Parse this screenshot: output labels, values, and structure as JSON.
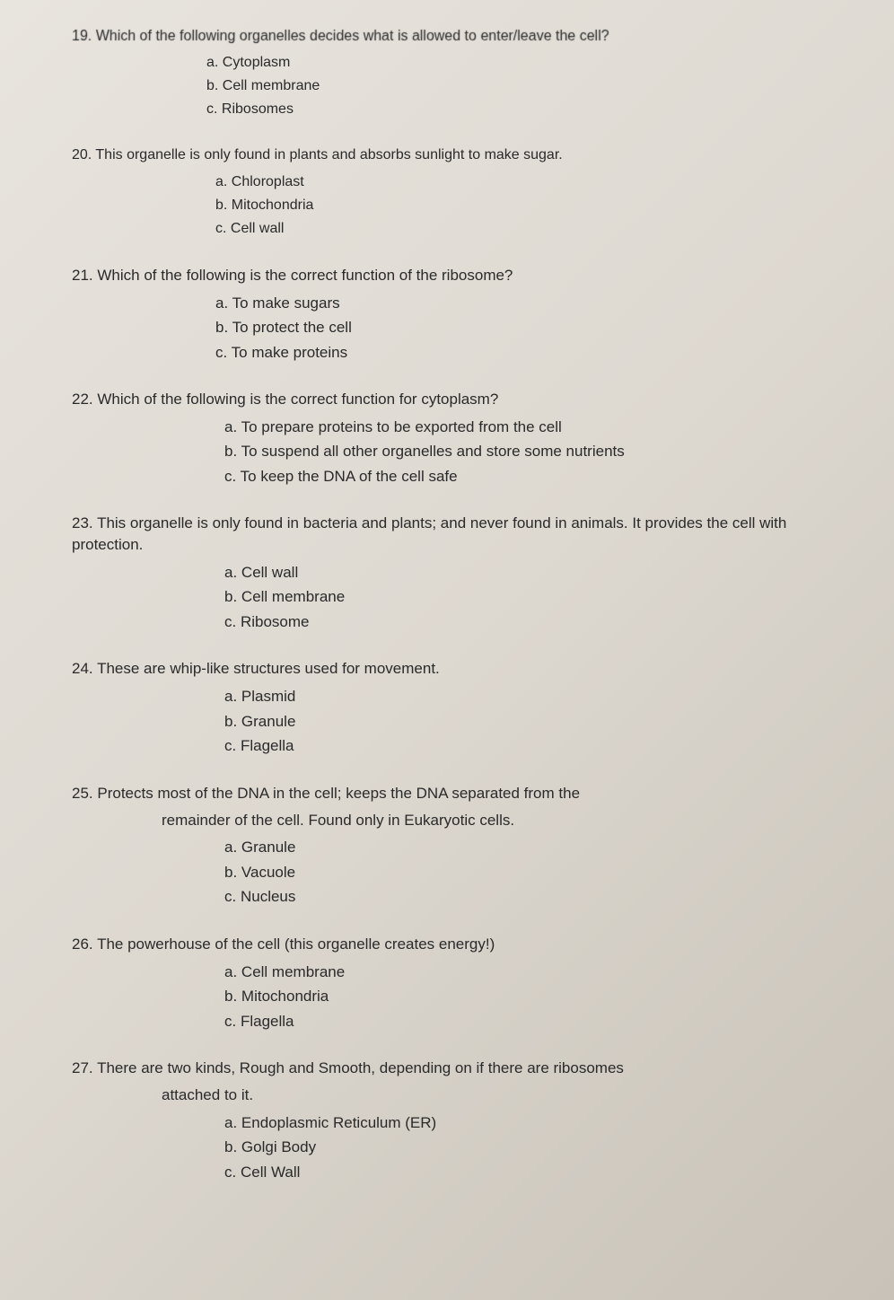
{
  "questions": [
    {
      "number": "19.",
      "text": "Which of the following organelles decides what is allowed to enter/leave the cell?",
      "options": [
        {
          "letter": "a.",
          "text": "Cytoplasm"
        },
        {
          "letter": "b.",
          "text": "Cell membrane"
        },
        {
          "letter": "c.",
          "text": "Ribosomes"
        }
      ]
    },
    {
      "number": "20.",
      "text": "This organelle is only found in plants and absorbs sunlight to make sugar.",
      "options": [
        {
          "letter": "a.",
          "text": "Chloroplast"
        },
        {
          "letter": "b.",
          "text": "Mitochondria"
        },
        {
          "letter": "c.",
          "text": "Cell wall"
        }
      ]
    },
    {
      "number": "21.",
      "text": "Which of the following is the correct function of the ribosome?",
      "options": [
        {
          "letter": "a.",
          "text": "To make sugars"
        },
        {
          "letter": "b.",
          "text": "To protect the cell"
        },
        {
          "letter": "c.",
          "text": "To make proteins"
        }
      ]
    },
    {
      "number": "22.",
      "text": "Which of the following is the correct function for cytoplasm?",
      "options": [
        {
          "letter": "a.",
          "text": "To prepare proteins to be exported from the cell"
        },
        {
          "letter": "b.",
          "text": "To suspend all other organelles and store some nutrients"
        },
        {
          "letter": "c.",
          "text": "To keep the DNA of the cell safe"
        }
      ]
    },
    {
      "number": "23.",
      "text": "This organelle is only found in bacteria and plants; and never found in animals. It provides the cell with protection.",
      "options": [
        {
          "letter": "a.",
          "text": "Cell wall"
        },
        {
          "letter": "b.",
          "text": "Cell membrane"
        },
        {
          "letter": "c.",
          "text": "Ribosome"
        }
      ]
    },
    {
      "number": "24.",
      "text": "These are whip-like structures used for movement.",
      "options": [
        {
          "letter": "a.",
          "text": "Plasmid"
        },
        {
          "letter": "b.",
          "text": "Granule"
        },
        {
          "letter": "c.",
          "text": "Flagella"
        }
      ]
    },
    {
      "number": "25.",
      "text": "Protects most of the DNA in the cell; keeps the DNA separated from the",
      "sub_text": "remainder of the cell. Found only in Eukaryotic cells.",
      "options": [
        {
          "letter": "a.",
          "text": "Granule"
        },
        {
          "letter": "b.",
          "text": "Vacuole"
        },
        {
          "letter": "c.",
          "text": "Nucleus"
        }
      ]
    },
    {
      "number": "26.",
      "text": "The powerhouse of the cell (this organelle creates energy!)",
      "options": [
        {
          "letter": "a.",
          "text": "Cell membrane"
        },
        {
          "letter": "b.",
          "text": "Mitochondria"
        },
        {
          "letter": "c.",
          "text": "Flagella"
        }
      ]
    },
    {
      "number": "27.",
      "text": "There are two kinds, Rough and Smooth, depending on if there are ribosomes",
      "sub_text": "attached to it.",
      "options": [
        {
          "letter": "a.",
          "text": "Endoplasmic Reticulum (ER)"
        },
        {
          "letter": "b.",
          "text": "Golgi Body"
        },
        {
          "letter": "c.",
          "text": "Cell Wall"
        }
      ]
    }
  ]
}
